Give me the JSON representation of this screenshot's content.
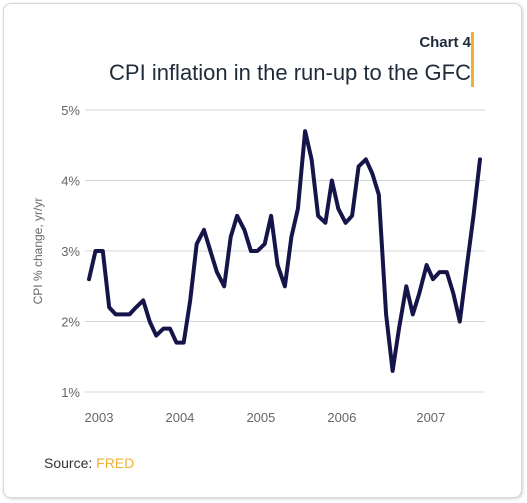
{
  "colors": {
    "line": "#15154a",
    "accent": "#f0b030",
    "grid": "#d4d4d4",
    "text": "#1f2a3a"
  },
  "header": {
    "chart_number": "Chart 4",
    "title": "CPI inflation in the run-up to the GFC"
  },
  "source": {
    "label": "Source: ",
    "link_text": "FRED"
  },
  "chart_data": {
    "type": "line",
    "title": "CPI inflation in the run-up to the GFC",
    "ylabel": "CPI % change, yr/yr",
    "xlabel": "",
    "ylim": [
      1,
      5
    ],
    "yticks": [
      1,
      2,
      3,
      4,
      5
    ],
    "ytick_labels": [
      "1%",
      "2%",
      "3%",
      "4%",
      "5%"
    ],
    "xlim": [
      2003.0,
      2007.9
    ],
    "xticks": [
      2003,
      2004,
      2005,
      2006,
      2007
    ],
    "xtick_labels": [
      "2003",
      "2004",
      "2005",
      "2006",
      "2007"
    ],
    "grid": true,
    "series": [
      {
        "x": [
          2003.0,
          2003.08,
          2003.17,
          2003.25,
          2003.33,
          2003.42,
          2003.5,
          2003.58,
          2003.67,
          2003.75,
          2003.83,
          2003.92,
          2004.0,
          2004.08,
          2004.17,
          2004.25,
          2004.33,
          2004.42,
          2004.5,
          2004.58,
          2004.67,
          2004.75,
          2004.83,
          2004.92,
          2005.0,
          2005.08,
          2005.17,
          2005.25,
          2005.33,
          2005.42,
          2005.5,
          2005.58,
          2005.67,
          2005.75,
          2005.83,
          2005.92,
          2006.0,
          2006.08,
          2006.17,
          2006.25,
          2006.33,
          2006.42,
          2006.5,
          2006.58,
          2006.67,
          2006.75,
          2006.83,
          2006.92,
          2007.0,
          2007.08,
          2007.17,
          2007.25,
          2007.33,
          2007.42,
          2007.5,
          2007.58,
          2007.67,
          2007.75,
          2007.83
        ],
        "values": [
          2.6,
          3.0,
          3.0,
          2.2,
          2.1,
          2.1,
          2.1,
          2.2,
          2.3,
          2.0,
          1.8,
          1.9,
          1.9,
          1.7,
          1.7,
          2.3,
          3.1,
          3.3,
          3.0,
          2.7,
          2.5,
          3.2,
          3.5,
          3.3,
          3.0,
          3.0,
          3.1,
          3.5,
          2.8,
          2.5,
          3.2,
          3.6,
          4.7,
          4.3,
          3.5,
          3.4,
          4.0,
          3.6,
          3.4,
          3.5,
          4.2,
          4.3,
          4.1,
          3.8,
          2.1,
          1.3,
          1.9,
          2.5,
          2.1,
          2.4,
          2.8,
          2.6,
          2.7,
          2.7,
          2.4,
          2.0,
          2.8,
          3.5,
          4.3
        ]
      }
    ]
  }
}
